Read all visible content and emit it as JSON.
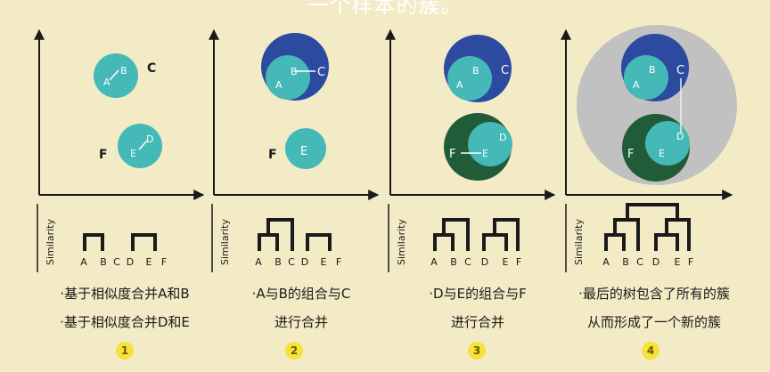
{
  "title": "一个样本的簇。",
  "y_axis_label": "Similarity",
  "leaf_labels": [
    "A",
    "B",
    "C",
    "D",
    "E",
    "F"
  ],
  "point_labels": {
    "a": "A",
    "b": "B",
    "c": "C",
    "d": "D",
    "e": "E",
    "f": "F"
  },
  "colors": {
    "background": "#f3ebc6",
    "teal": "#45b8b8",
    "blue": "#2b4aa0",
    "green": "#215c38",
    "gray": "#c0c1c0",
    "badge": "#f6e23b",
    "axis": "#1a1a1a"
  },
  "panels": [
    {
      "step": "1",
      "caption_lines": [
        "·基于相似度合并A和B",
        "·基于相似度合并D和E"
      ]
    },
    {
      "step": "2",
      "caption_lines": [
        "·A与B的组合与C",
        "进行合并"
      ]
    },
    {
      "step": "3",
      "caption_lines": [
        "·D与E的组合与F",
        "进行合并"
      ]
    },
    {
      "step": "4",
      "caption_lines": [
        "·最后的树包含了所有的簇",
        "从而形成了一个新的簇"
      ]
    }
  ]
}
